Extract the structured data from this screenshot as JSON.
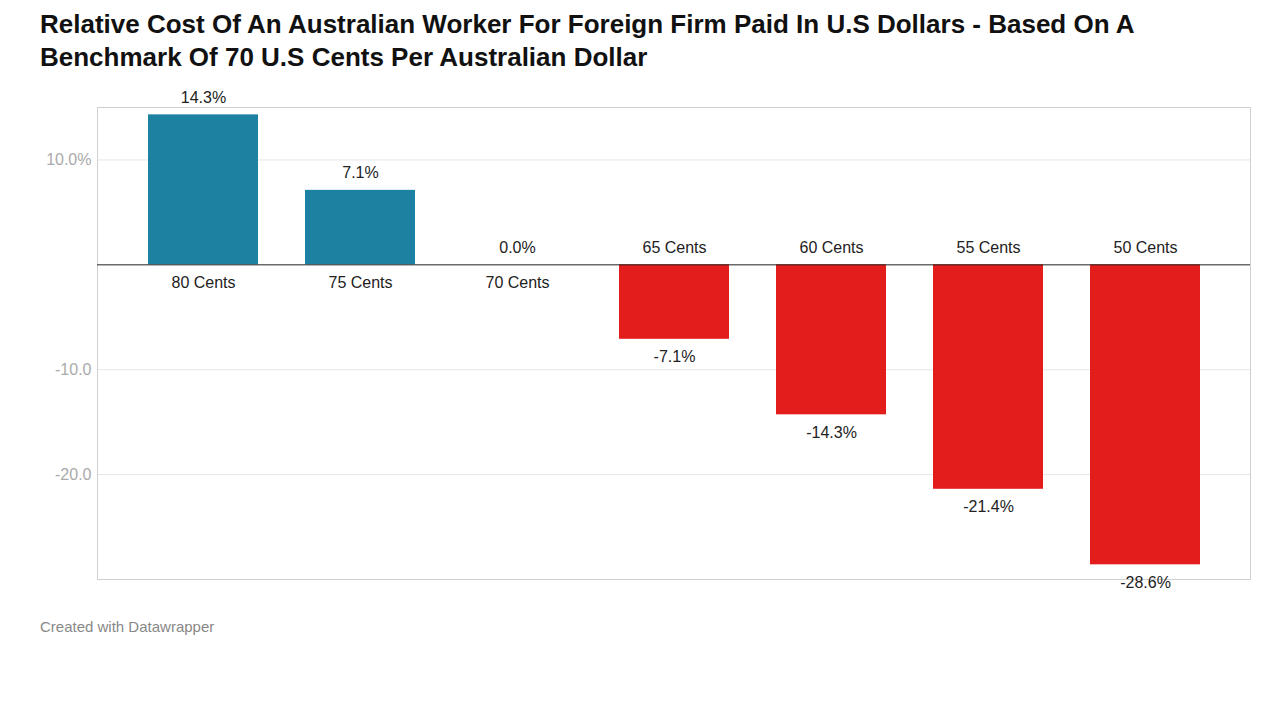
{
  "chart_data": {
    "type": "bar",
    "title": "Relative Cost Of An Australian Worker For Foreign Firm Paid In U.S Dollars - Based On A Benchmark Of 70 U.S Cents Per Australian Dollar",
    "caption": "Created with Datawrapper",
    "categories": [
      "80 Cents",
      "75 Cents",
      "70 Cents",
      "65 Cents",
      "60 Cents",
      "55 Cents",
      "50 Cents"
    ],
    "values": [
      14.3,
      7.1,
      0.0,
      -7.1,
      -14.3,
      -21.4,
      -28.6
    ],
    "value_labels": [
      "14.3%",
      "7.1%",
      "0.0%",
      "-7.1%",
      "-14.3%",
      "-21.4%",
      "-28.6%"
    ],
    "colors": [
      "#1d81a2",
      "#1d81a2",
      "#1d81a2",
      "#e31c1c",
      "#e31c1c",
      "#e31c1c",
      "#e31c1c"
    ],
    "ylim": [
      -30,
      15
    ],
    "yticks": [
      {
        "value": 10,
        "label": "10.0%"
      },
      {
        "value": -10,
        "label": "-10.0"
      },
      {
        "value": -20,
        "label": "-20.0"
      }
    ],
    "grid": true,
    "data_labels": true
  }
}
